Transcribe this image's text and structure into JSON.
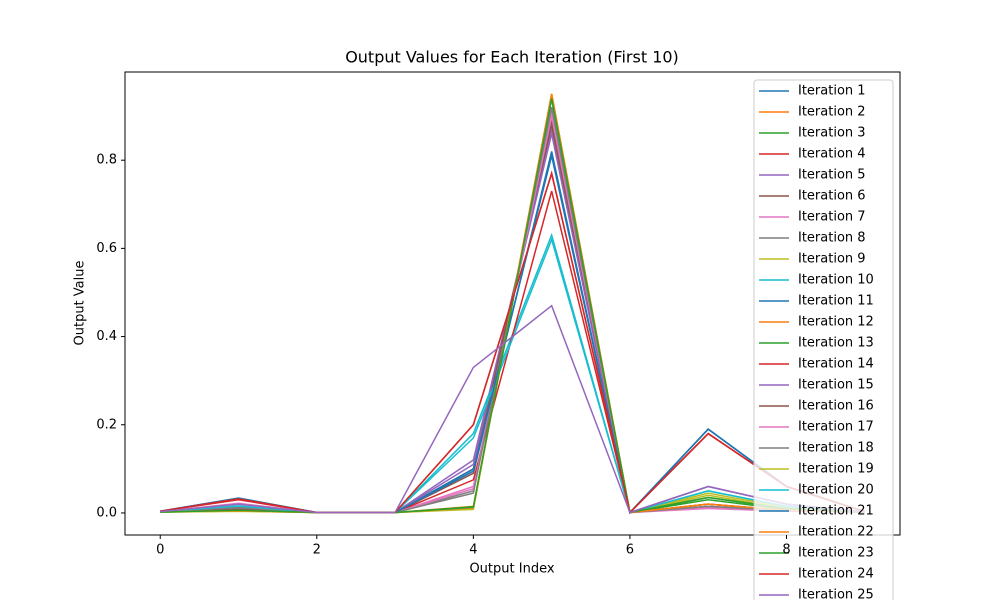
{
  "chart_data": {
    "type": "line",
    "title": "Output Values for Each Iteration (First 10)",
    "x_label": "Output Index",
    "y_label": "Output Value",
    "x": [
      0,
      1,
      2,
      3,
      4,
      5,
      6,
      7,
      8,
      9
    ],
    "xlim": [
      -0.45,
      9.45
    ],
    "xticks": [
      0,
      2,
      4,
      6,
      8
    ],
    "ylim": [
      -0.05,
      1.0
    ],
    "yticks": [
      {
        "value": 0,
        "label": "0.0"
      },
      0.2,
      0.4,
      0.6,
      0.8
    ],
    "legend": "upper right",
    "series": [
      {
        "name": "Iteration 1",
        "color": "#1f77b4",
        "values": [
          0.004,
          0.033,
          0.001,
          0.001,
          0.09,
          0.82,
          0.001,
          0.19,
          0.06,
          0.003
        ]
      },
      {
        "name": "Iteration 2",
        "color": "#ff7f0e",
        "values": [
          0.003,
          0.005,
          0.001,
          0.001,
          0.015,
          0.95,
          0.001,
          0.02,
          0.005,
          0.002
        ]
      },
      {
        "name": "Iteration 3",
        "color": "#2ca02c",
        "values": [
          0.002,
          0.006,
          0.001,
          0.001,
          0.012,
          0.94,
          0.001,
          0.03,
          0.008,
          0.002
        ]
      },
      {
        "name": "Iteration 4",
        "color": "#d62728",
        "values": [
          0.004,
          0.031,
          0.001,
          0.001,
          0.2,
          0.77,
          0.001,
          0.18,
          0.06,
          0.003
        ]
      },
      {
        "name": "Iteration 5",
        "color": "#9467bd",
        "values": [
          0.003,
          0.01,
          0.001,
          0.001,
          0.12,
          0.87,
          0.001,
          0.06,
          0.02,
          0.002
        ]
      },
      {
        "name": "Iteration 6",
        "color": "#8c564b",
        "values": [
          0.003,
          0.008,
          0.001,
          0.001,
          0.1,
          0.88,
          0.001,
          0.02,
          0.006,
          0.002
        ]
      },
      {
        "name": "Iteration 7",
        "color": "#e377c2",
        "values": [
          0.003,
          0.02,
          0.001,
          0.001,
          0.06,
          0.91,
          0.001,
          0.01,
          0.004,
          0.002
        ]
      },
      {
        "name": "Iteration 8",
        "color": "#7f7f7f",
        "values": [
          0.003,
          0.012,
          0.001,
          0.001,
          0.05,
          0.92,
          0.001,
          0.015,
          0.005,
          0.002
        ]
      },
      {
        "name": "Iteration 9",
        "color": "#bcbd22",
        "values": [
          0.002,
          0.004,
          0.001,
          0.001,
          0.01,
          0.95,
          0.001,
          0.04,
          0.01,
          0.002
        ]
      },
      {
        "name": "Iteration 10",
        "color": "#17becf",
        "values": [
          0.003,
          0.015,
          0.001,
          0.001,
          0.18,
          0.63,
          0.001,
          0.05,
          0.015,
          0.003
        ]
      },
      {
        "name": "Iteration 11",
        "color": "#1f77b4",
        "values": [
          0.004,
          0.034,
          0.001,
          0.001,
          0.1,
          0.81,
          0.001,
          0.19,
          0.06,
          0.003
        ]
      },
      {
        "name": "Iteration 12",
        "color": "#ff7f0e",
        "values": [
          0.003,
          0.005,
          0.001,
          0.001,
          0.01,
          0.95,
          0.001,
          0.02,
          0.006,
          0.002
        ]
      },
      {
        "name": "Iteration 13",
        "color": "#2ca02c",
        "values": [
          0.002,
          0.006,
          0.001,
          0.001,
          0.014,
          0.94,
          0.001,
          0.035,
          0.01,
          0.002
        ]
      },
      {
        "name": "Iteration 14",
        "color": "#d62728",
        "values": [
          0.004,
          0.03,
          0.001,
          0.001,
          0.075,
          0.73,
          0.001,
          0.18,
          0.06,
          0.003
        ]
      },
      {
        "name": "Iteration 15",
        "color": "#9467bd",
        "values": [
          0.003,
          0.011,
          0.001,
          0.001,
          0.11,
          0.86,
          0.001,
          0.06,
          0.02,
          0.002
        ]
      },
      {
        "name": "Iteration 16",
        "color": "#8c564b",
        "values": [
          0.003,
          0.008,
          0.001,
          0.001,
          0.09,
          0.89,
          0.001,
          0.02,
          0.006,
          0.002
        ]
      },
      {
        "name": "Iteration 17",
        "color": "#e377c2",
        "values": [
          0.003,
          0.022,
          0.001,
          0.001,
          0.055,
          0.9,
          0.001,
          0.012,
          0.004,
          0.002
        ]
      },
      {
        "name": "Iteration 18",
        "color": "#7f7f7f",
        "values": [
          0.003,
          0.012,
          0.001,
          0.001,
          0.045,
          0.92,
          0.001,
          0.015,
          0.005,
          0.002
        ]
      },
      {
        "name": "Iteration 19",
        "color": "#bcbd22",
        "values": [
          0.002,
          0.004,
          0.001,
          0.001,
          0.008,
          0.95,
          0.001,
          0.045,
          0.012,
          0.002
        ]
      },
      {
        "name": "Iteration 20",
        "color": "#17becf",
        "values": [
          0.003,
          0.016,
          0.001,
          0.001,
          0.17,
          0.62,
          0.001,
          0.05,
          0.015,
          0.003
        ]
      },
      {
        "name": "Iteration 21",
        "color": "#1f77b4",
        "values": [
          0.004,
          0.033,
          0.001,
          0.001,
          0.095,
          0.815,
          0.001,
          0.19,
          0.06,
          0.003
        ]
      },
      {
        "name": "Iteration 22",
        "color": "#ff7f0e",
        "values": [
          0.003,
          0.005,
          0.001,
          0.001,
          0.012,
          0.95,
          0.001,
          0.02,
          0.006,
          0.002
        ]
      },
      {
        "name": "Iteration 23",
        "color": "#2ca02c",
        "values": [
          0.002,
          0.006,
          0.001,
          0.001,
          0.013,
          0.94,
          0.001,
          0.035,
          0.01,
          0.002
        ]
      },
      {
        "name": "Iteration 24",
        "color": "#d62728",
        "values": [
          0.004,
          0.032,
          0.001,
          0.001,
          0.2,
          0.77,
          0.001,
          0.18,
          0.06,
          0.003
        ]
      },
      {
        "name": "Iteration 25",
        "color": "#9467bd",
        "values": [
          0.003,
          0.02,
          0.001,
          0.001,
          0.33,
          0.47,
          0.001,
          0.06,
          0.02,
          0.002
        ]
      }
    ]
  }
}
